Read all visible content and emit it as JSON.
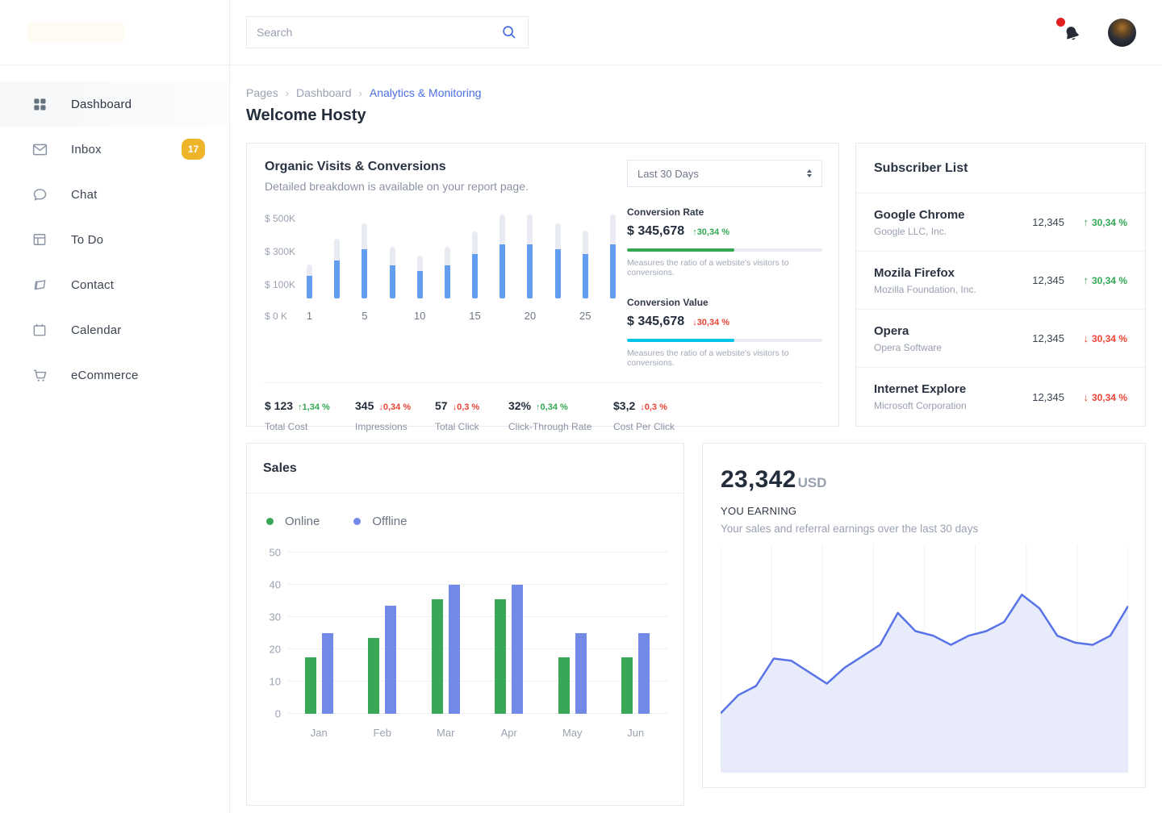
{
  "sidebar": {
    "items": [
      {
        "label": "Dashboard",
        "active": true
      },
      {
        "label": "Inbox",
        "badge": "17"
      },
      {
        "label": "Chat"
      },
      {
        "label": "To Do"
      },
      {
        "label": "Contact"
      },
      {
        "label": "Calendar"
      },
      {
        "label": "eCommerce"
      }
    ]
  },
  "header": {
    "search_placeholder": "Search"
  },
  "breadcrumb": {
    "root": "Pages",
    "parent": "Dashboard",
    "current": "Analytics & Monitoring"
  },
  "page": {
    "title": "Welcome Hosty"
  },
  "organic": {
    "title": "Organic Visits & Conversions",
    "subtitle": "Detailed breakdown is available on your report page.",
    "range": "Last 30 Days",
    "blocks": [
      {
        "label": "Conversion Rate",
        "value": "$ 345,678",
        "delta": "30,34 %",
        "direction": "up",
        "caption": "Measures the ratio of a website's visitors to conversions.",
        "bar_color": "#34a853",
        "bar_pct": 55
      },
      {
        "label": "Conversion Value",
        "value": "$ 345,678",
        "delta": "30,34 %",
        "direction": "down",
        "caption": "Measures the ratio of a website's visitors to conversions.",
        "bar_color": "#00c5e8",
        "bar_pct": 55
      }
    ],
    "stats": [
      {
        "value": "$ 123",
        "delta": "1,34 %",
        "direction": "up",
        "label": "Total Cost"
      },
      {
        "value": "345",
        "delta": "0,34 %",
        "direction": "down",
        "label": "Impressions"
      },
      {
        "value": "57",
        "delta": "0,3 %",
        "direction": "down",
        "label": "Total Click"
      },
      {
        "value": "32%",
        "delta": "0,34 %",
        "direction": "up",
        "label": "Click-Through Rate"
      },
      {
        "value": "$3,2",
        "delta": "0,3 %",
        "direction": "down",
        "label": "Cost Per Click"
      }
    ]
  },
  "subscribers": {
    "title": "Subscriber List",
    "rows": [
      {
        "name": "Google Chrome",
        "company": "Google LLC, Inc.",
        "count": "12,345",
        "delta": "30,34 %",
        "direction": "up"
      },
      {
        "name": "Mozila Firefox",
        "company": "Mozilla Foundation, Inc.",
        "count": "12,345",
        "delta": "30,34 %",
        "direction": "up"
      },
      {
        "name": "Opera",
        "company": "Opera Software",
        "count": "12,345",
        "delta": "30,34 %",
        "direction": "down"
      },
      {
        "name": "Internet Explore",
        "company": "Microsoft Corporation",
        "count": "12,345",
        "delta": "30,34 %",
        "direction": "down"
      }
    ]
  },
  "sales": {
    "title": "Sales",
    "legend": [
      {
        "label": "Online",
        "color": "#3aa757"
      },
      {
        "label": "Offline",
        "color": "#7289e8"
      }
    ]
  },
  "earnings": {
    "amount": "23,342",
    "currency": "USD",
    "label": "YOU EARNING",
    "subtitle": "Your sales and referral earnings over the last 30 days"
  },
  "colors": {
    "accent_blue": "#4a6ee0",
    "green": "#34a853",
    "red": "#ea4335",
    "badge_yellow": "#eeb42a"
  },
  "chart_data": [
    {
      "id": "organic-visits",
      "type": "bar",
      "title": "Organic Visits & Conversions",
      "unit": "USD thousands",
      "ylim": [
        0,
        520
      ],
      "y_ticks": [
        "$ 500K",
        "$ 300K",
        "$ 100K",
        "$ 0 K"
      ],
      "bar_labels": [
        "1",
        "",
        "5",
        "",
        "10",
        "",
        "15",
        "",
        "20",
        "",
        "25",
        ""
      ],
      "series": [
        {
          "name": "total",
          "color": "#e8ebf1",
          "values": [
            210,
            365,
            460,
            315,
            265,
            315,
            410,
            515,
            515,
            460,
            415,
            515
          ]
        },
        {
          "name": "visits",
          "color": "#639df0",
          "values": [
            140,
            235,
            300,
            205,
            170,
            205,
            270,
            330,
            330,
            300,
            270,
            330
          ]
        }
      ]
    },
    {
      "id": "sales",
      "type": "bar",
      "title": "Sales",
      "categories": [
        "Jan",
        "Feb",
        "Mar",
        "Apr",
        "May",
        "Jun"
      ],
      "ylim": [
        0,
        50
      ],
      "y_ticks": [
        0,
        10,
        20,
        30,
        40,
        50
      ],
      "grid": true,
      "legend_position": "top",
      "series": [
        {
          "name": "Online",
          "color": "#3aa757",
          "values": [
            17.5,
            23.5,
            35.5,
            35.5,
            17.5,
            17.5
          ]
        },
        {
          "name": "Offline",
          "color": "#7289e8",
          "values": [
            25,
            33.5,
            40,
            40,
            25,
            25
          ]
        }
      ]
    },
    {
      "id": "earnings",
      "type": "area",
      "title": "Earnings over the last 30 days",
      "ylim": [
        0,
        100
      ],
      "line_color": "#5873e8",
      "fill_color": "#e7ebfa",
      "grid": "vertical",
      "values": [
        26,
        34,
        38,
        50,
        49,
        44,
        39,
        46,
        51,
        56,
        70,
        62,
        60,
        56,
        60,
        62,
        66,
        78,
        72,
        60,
        57,
        56,
        60,
        73
      ]
    }
  ]
}
